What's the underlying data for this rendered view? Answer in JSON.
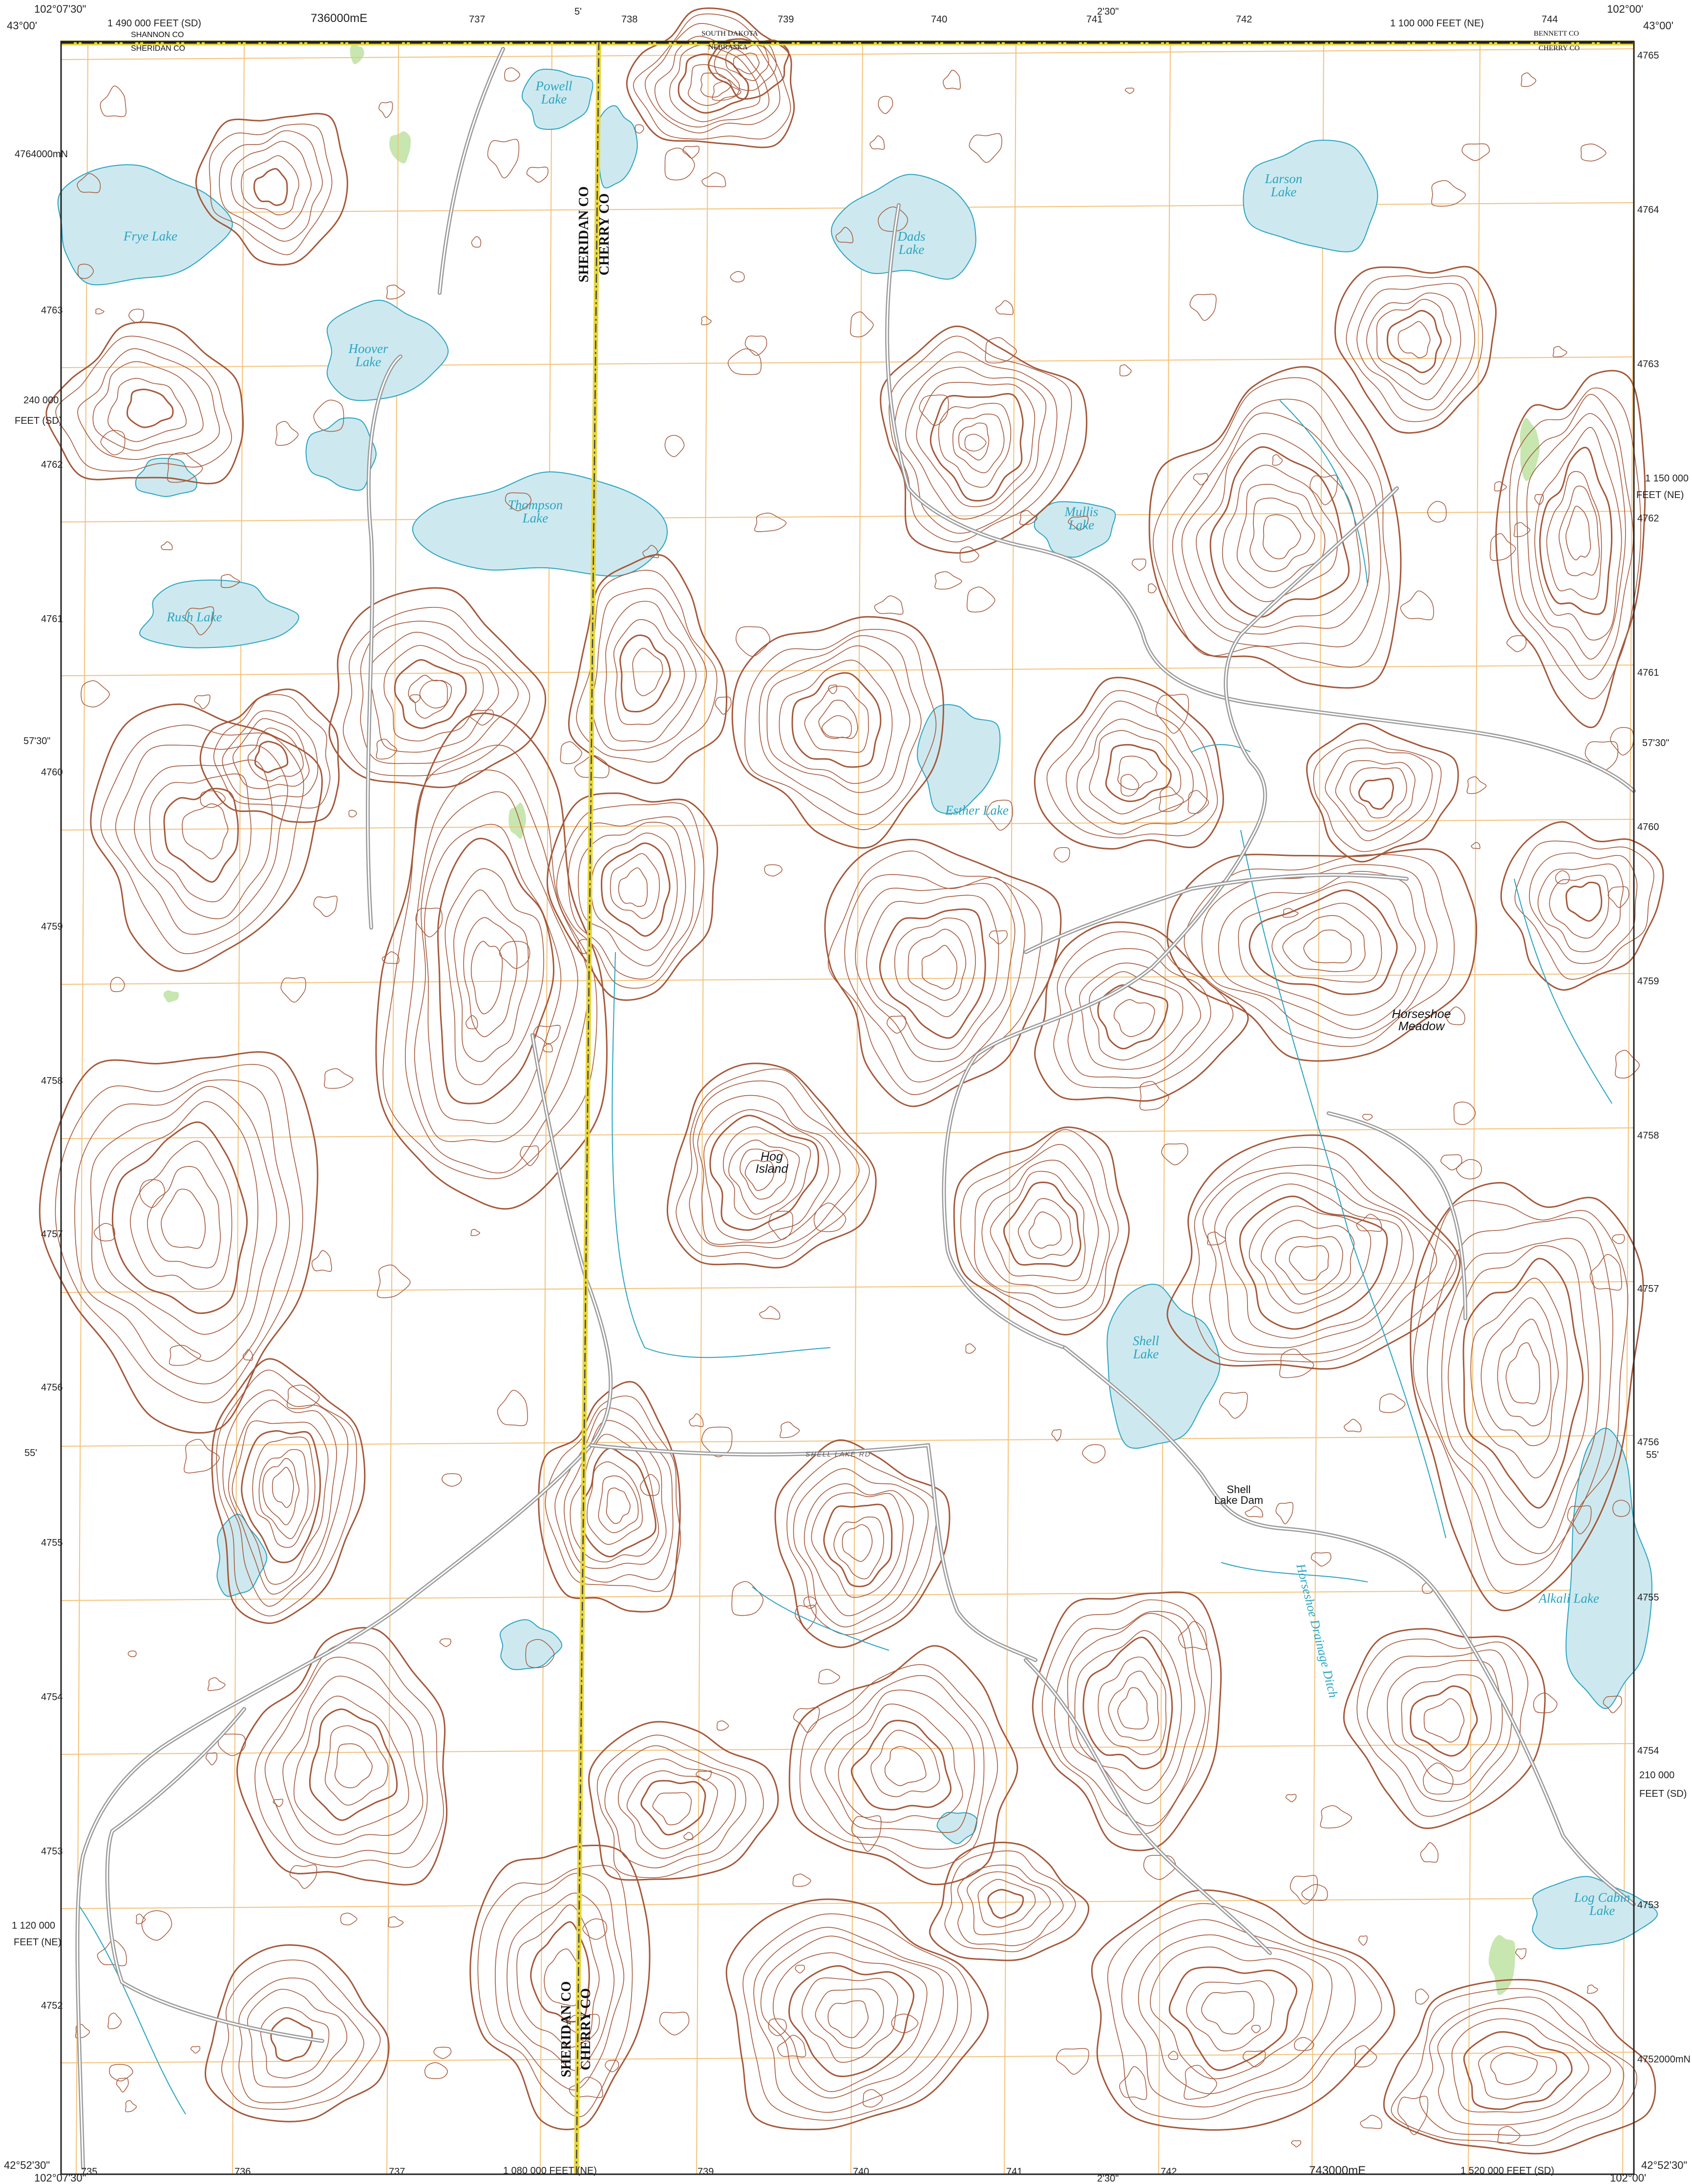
{
  "colors": {
    "contour": "#a5583a",
    "water_fill": "#cde9ef",
    "water_line": "#2aa4c0",
    "grid": "#f2c27a",
    "road": "#9a9a9a",
    "vegetation": "#c8e6b0",
    "border_yellow": "#e8d63a",
    "label": "#111111"
  },
  "corners": {
    "top_left_lon": "102°07'30\"",
    "top_left_lat": "43°00'",
    "top_right_lon": "102°00'",
    "top_right_lat": "43°00'",
    "bottom_left_lon": "102°07'30\"",
    "bottom_left_lat": "42°52'30\"",
    "bottom_right_lon": "102°00'",
    "bottom_right_lat": "42°52'30\""
  },
  "top_ticks": {
    "sd_feet": "1 490 000 FEET (SD)",
    "e736": "736000mE",
    "e737": "737",
    "min5": "5'",
    "e738": "738",
    "e739": "739",
    "e740": "740",
    "min230": "2'30\"",
    "e741": "741",
    "e742": "742",
    "ne_feet": "1 100 000 FEET (NE)",
    "e744": "744"
  },
  "bottom_ticks": {
    "e735": "735",
    "e736": "736",
    "e737": "737",
    "ne_feet": "1 080 000 FEET (NE)",
    "e739": "739",
    "e740": "740",
    "e741": "741",
    "min230": "2'30\"",
    "e742": "742",
    "e743": "743000mE",
    "sd_feet": "1 520 000 FEET (SD)"
  },
  "left_ticks": {
    "n4764": "4764000mN",
    "n63": "4763",
    "sd_feet_a": "240 000",
    "sd_feet_b": "FEET (SD)",
    "n62": "4762",
    "n61": "4761",
    "min5730": "57'30\"",
    "n60": "4760",
    "n59": "4759",
    "n58": "4758",
    "n57": "4757",
    "n56": "4756",
    "min55": "55'",
    "n55": "4755",
    "n54": "4754",
    "n53": "4753",
    "ne_feet_a": "1 120 000",
    "ne_feet_b": "FEET (NE)",
    "n52": "4752"
  },
  "right_ticks": {
    "n65": "4765",
    "n64": "4764",
    "n63": "4763",
    "ne_feet_a": "1 150 000",
    "ne_feet_b": "FEET (NE)",
    "n62": "4762",
    "n61": "4761",
    "min5730": "57'30\"",
    "n60": "4760",
    "n59": "4759",
    "n58": "4758",
    "n57": "4757",
    "n56": "4756",
    "min55": "55'",
    "n55": "4755",
    "n54": "4754",
    "sd_feet_a": "210 000",
    "sd_feet_b": "FEET (SD)",
    "n53": "4753",
    "n52": "4752000mN"
  },
  "boundary_labels": {
    "shannon": "SHANNON CO",
    "sheridan_top": "SHERIDAN CO",
    "south_dakota": "SOUTH DAKOTA",
    "nebraska": "NEBRASKA",
    "bennett": "BENNETT CO",
    "cherry_top": "CHERRY CO"
  },
  "county_labels": {
    "sheridan_upper": "SHERIDAN CO",
    "cherry_upper": "CHERRY CO",
    "sheridan_lower": "SHERIDAN CO",
    "cherry_lower": "CHERRY CO"
  },
  "lakes": {
    "powell": [
      "Powell",
      "Lake"
    ],
    "frye": "Frye Lake",
    "hoover": [
      "Hoover",
      "Lake"
    ],
    "thompson": [
      "Thompson",
      "Lake"
    ],
    "rush": "Rush Lake",
    "dads": [
      "Dads",
      "Lake"
    ],
    "larson": [
      "Larson",
      "Lake"
    ],
    "mullis": [
      "Mullis",
      "Lake"
    ],
    "esther": "Esther Lake",
    "shell": [
      "Shell",
      "Lake"
    ],
    "alkali": "Alkali Lake",
    "log_cabin": [
      "Log Cabin",
      "Lake"
    ]
  },
  "features": {
    "hog_island": [
      "Hog",
      "Island"
    ],
    "horseshoe_meadow": [
      "Horseshoe",
      "Meadow"
    ],
    "shell_lake_dam": [
      "Shell",
      "Lake Dam"
    ],
    "shell_lake_rd": "SHELL LAKE RD",
    "drainage_ditch": "Horseshoe Drainage Ditch"
  }
}
